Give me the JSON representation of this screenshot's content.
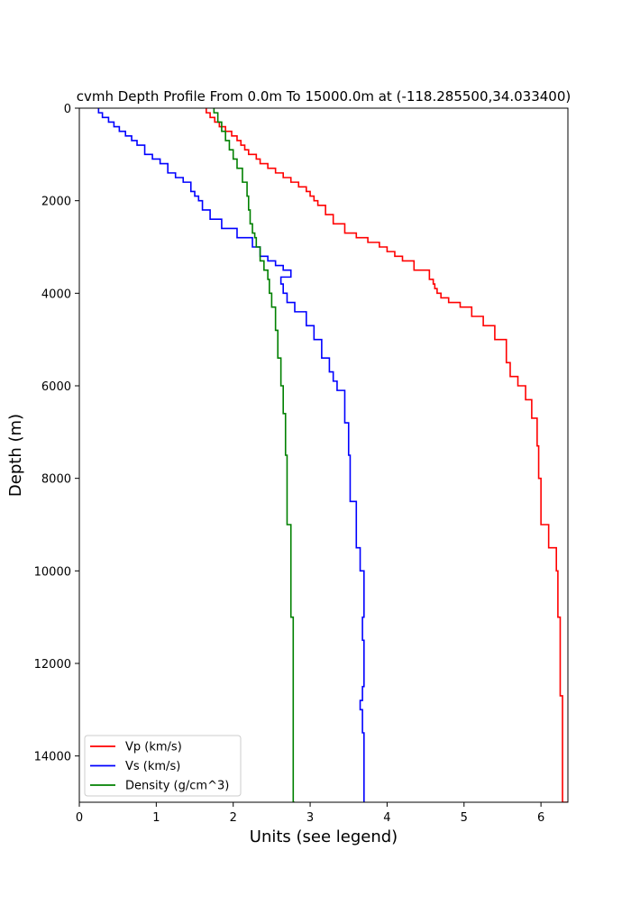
{
  "chart_data": {
    "type": "line",
    "title": "cvmh Depth Profile From 0.0m To 15000.0m at (-118.285500,34.033400)",
    "xlabel": "Units (see legend)",
    "ylabel": "Depth (m)",
    "xlim": [
      0,
      6.35
    ],
    "ylim": [
      15000,
      0
    ],
    "y_inverted": true,
    "xticks": [
      0,
      1,
      2,
      3,
      4,
      5,
      6
    ],
    "yticks": [
      0,
      2000,
      4000,
      6000,
      8000,
      10000,
      12000,
      14000
    ],
    "grid": false,
    "legend_position": "lower-left",
    "series": [
      {
        "name": "Vp (km/s)",
        "color": "#ff0000",
        "x": [
          1.65,
          1.7,
          1.76,
          1.82,
          1.9,
          1.98,
          2.05,
          2.1,
          2.15,
          2.2,
          2.3,
          2.35,
          2.45,
          2.55,
          2.65,
          2.75,
          2.85,
          2.95,
          3.0,
          3.05,
          3.1,
          3.2,
          3.3,
          3.45,
          3.6,
          3.75,
          3.9,
          4.0,
          4.1,
          4.2,
          4.35,
          4.55,
          4.6,
          4.62,
          4.65,
          4.7,
          4.8,
          4.95,
          5.1,
          5.25,
          5.4,
          5.55,
          5.6,
          5.7,
          5.8,
          5.88,
          5.95,
          5.97,
          6.0,
          6.1,
          6.2,
          6.22,
          6.25,
          6.28,
          6.35
        ],
        "y": [
          0,
          100,
          200,
          300,
          400,
          500,
          600,
          700,
          800,
          900,
          1000,
          1100,
          1200,
          1300,
          1400,
          1500,
          1600,
          1700,
          1800,
          1900,
          2000,
          2100,
          2300,
          2500,
          2700,
          2800,
          2900,
          3000,
          3100,
          3200,
          3300,
          3500,
          3700,
          3800,
          3900,
          4000,
          4100,
          4200,
          4300,
          4500,
          4700,
          5000,
          5500,
          5800,
          6000,
          6300,
          6700,
          7300,
          8000,
          9000,
          9500,
          10000,
          11000,
          12700,
          15000
        ]
      },
      {
        "name": "Vs (km/s)",
        "color": "#0000ff",
        "x": [
          0.25,
          0.3,
          0.38,
          0.45,
          0.52,
          0.6,
          0.68,
          0.75,
          0.85,
          0.95,
          1.05,
          1.15,
          1.25,
          1.35,
          1.45,
          1.5,
          1.55,
          1.6,
          1.7,
          1.85,
          2.05,
          2.25,
          2.35,
          2.45,
          2.55,
          2.65,
          2.75,
          2.62,
          2.65,
          2.7,
          2.8,
          2.95,
          3.05,
          3.15,
          3.25,
          3.3,
          3.35,
          3.45,
          3.5,
          3.52,
          3.6,
          3.65,
          3.7,
          3.68,
          3.7,
          3.68,
          3.65,
          3.68,
          3.7,
          3.7
        ],
        "y": [
          0,
          100,
          200,
          300,
          400,
          500,
          600,
          700,
          800,
          1000,
          1100,
          1200,
          1400,
          1500,
          1600,
          1800,
          1900,
          2000,
          2200,
          2400,
          2600,
          2800,
          3000,
          3200,
          3300,
          3400,
          3500,
          3650,
          3800,
          4000,
          4200,
          4400,
          4700,
          5000,
          5400,
          5700,
          5900,
          6100,
          6800,
          7500,
          8500,
          9500,
          10000,
          11000,
          11500,
          12500,
          12800,
          13000,
          13500,
          15000
        ]
      },
      {
        "name": "Density (g/cm^3)",
        "color": "#008000",
        "x": [
          1.75,
          1.8,
          1.85,
          1.9,
          1.95,
          2.0,
          2.05,
          2.12,
          2.18,
          2.2,
          2.22,
          2.25,
          2.28,
          2.3,
          2.35,
          2.4,
          2.45,
          2.47,
          2.5,
          2.55,
          2.58,
          2.62,
          2.65,
          2.68,
          2.7,
          2.75,
          2.78,
          2.8
        ],
        "y": [
          0,
          100,
          300,
          500,
          700,
          900,
          1100,
          1300,
          1600,
          1900,
          2200,
          2500,
          2700,
          2800,
          3000,
          3300,
          3500,
          3700,
          4000,
          4300,
          4800,
          5400,
          6000,
          6600,
          7500,
          9000,
          11000,
          15000
        ]
      }
    ]
  }
}
